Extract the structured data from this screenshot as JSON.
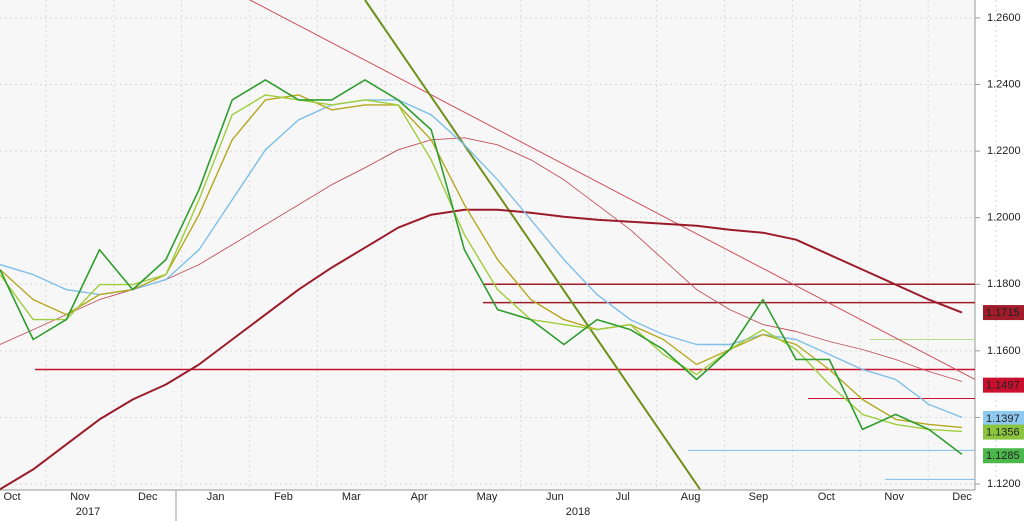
{
  "chart_data": {
    "type": "line",
    "x_axis": {
      "months": [
        "Oct",
        "Nov",
        "Dec",
        "Jan",
        "Feb",
        "Mar",
        "Apr",
        "May",
        "Jun",
        "Jul",
        "Aug",
        "Sep",
        "Oct",
        "Nov",
        "Dec"
      ],
      "years": [
        "2017",
        "2018"
      ]
    },
    "ylim": [
      1.1182,
      1.2654
    ],
    "yticks": [
      {
        "value": 1.12,
        "label": "1.1200"
      },
      {
        "value": 1.14,
        "label": "1.1400"
      },
      {
        "value": 1.16,
        "label": "1.1600"
      },
      {
        "value": 1.18,
        "label": "1.1800"
      },
      {
        "value": 1.2,
        "label": "1.2000"
      },
      {
        "value": 1.22,
        "label": "1.2200"
      },
      {
        "value": 1.24,
        "label": "1.2400"
      },
      {
        "value": 1.26,
        "label": "1.2600"
      }
    ],
    "grid": true,
    "series": [
      {
        "color": "#2f9e2f",
        "width": 1.6,
        "values": [
          1.1844,
          1.1634,
          1.1694,
          1.1904,
          1.1784,
          1.1874,
          1.2084,
          1.2354,
          1.2414,
          1.2354,
          1.2354,
          1.2414,
          1.2354,
          1.2264,
          1.1904,
          1.1724,
          1.1694,
          1.1619,
          1.1694,
          1.1664,
          1.1604,
          1.1514,
          1.1604,
          1.1754,
          1.1574,
          1.1574,
          1.1364,
          1.1409,
          1.1364,
          1.1289
        ]
      },
      {
        "color": "#9fce3b",
        "width": 1.4,
        "values": [
          1.1829,
          1.1694,
          1.1694,
          1.1799,
          1.1799,
          1.1829,
          1.2054,
          1.2309,
          1.2369,
          1.2354,
          1.2339,
          1.2354,
          1.2339,
          1.2174,
          1.1949,
          1.1784,
          1.1694,
          1.1679,
          1.1664,
          1.1679,
          1.1589,
          1.1529,
          1.1604,
          1.1664,
          1.1604,
          1.1499,
          1.1409,
          1.1379,
          1.1364,
          1.1358
        ]
      },
      {
        "color": "#b5a81e",
        "width": 1.4,
        "values": [
          1.1844,
          1.1754,
          1.1709,
          1.1769,
          1.1784,
          1.1829,
          1.2009,
          1.2234,
          1.2354,
          1.2369,
          1.2324,
          1.2339,
          1.2339,
          1.2234,
          1.2039,
          1.1874,
          1.1754,
          1.1694,
          1.1664,
          1.1679,
          1.1634,
          1.1559,
          1.1604,
          1.1649,
          1.1619,
          1.1544,
          1.1454,
          1.1394,
          1.1379,
          1.137
        ]
      },
      {
        "color": "#7fbfe8",
        "width": 1.4,
        "values": [
          1.1859,
          1.1829,
          1.1784,
          1.1769,
          1.1784,
          1.1814,
          1.1904,
          1.2054,
          1.2204,
          1.2294,
          1.2339,
          1.2354,
          1.2354,
          1.2309,
          1.2219,
          1.2114,
          1.1994,
          1.1874,
          1.1769,
          1.1694,
          1.1649,
          1.1619,
          1.1619,
          1.1649,
          1.1634,
          1.1589,
          1.1544,
          1.1514,
          1.1439,
          1.14
        ]
      },
      {
        "color": "#c0505a",
        "width": 0.9,
        "values": [
          1.1619,
          1.1664,
          1.1709,
          1.1754,
          1.1784,
          1.1814,
          1.1859,
          1.1919,
          1.1979,
          1.2039,
          1.2099,
          1.215,
          1.2204,
          1.2234,
          1.224,
          1.2219,
          1.2174,
          1.2114,
          1.2039,
          1.1964,
          1.1874,
          1.1784,
          1.1724,
          1.1679,
          1.1658,
          1.1628,
          1.1604,
          1.1574,
          1.1538,
          1.1508
        ]
      },
      {
        "color": "#9b1b2a",
        "width": 2,
        "values": [
          1.1184,
          1.1244,
          1.1319,
          1.1394,
          1.1454,
          1.1499,
          1.1559,
          1.1634,
          1.1709,
          1.1784,
          1.185,
          1.191,
          1.197,
          1.2009,
          1.2024,
          1.2024,
          1.2015,
          1.2003,
          1.1994,
          1.1988,
          1.1982,
          1.1976,
          1.1964,
          1.1955,
          1.1934,
          1.1889,
          1.1844,
          1.1799,
          1.1754,
          1.1715
        ]
      }
    ],
    "levels": [
      {
        "value": 1.18,
        "color": "#a01c2a"
      },
      {
        "value": 1.1745,
        "color": "#a01c2a"
      },
      {
        "value": 1.1544,
        "color": "#c8102e"
      },
      {
        "value": 1.1634,
        "color": "#b9d98a"
      },
      {
        "value": 1.1457,
        "color": "#c8102e"
      },
      {
        "value": 1.1301,
        "color": "#7fbfe8"
      },
      {
        "value": 1.1214,
        "color": "#7fbfe8"
      }
    ],
    "trendlines": [
      {
        "color": "#d0505a",
        "values": [
          1.2654,
          1.1514
        ]
      },
      {
        "color": "#6e8f1a",
        "values": [
          1.2654,
          1.1184
        ]
      }
    ],
    "price_labels": [
      {
        "label": "1.1715",
        "value": 1.1715,
        "color": "#a01c2a",
        "text_color": "#ffffff"
      },
      {
        "label": "1.1497",
        "value": 1.1497,
        "color": "#c8102e",
        "text_color": "#ffffff"
      },
      {
        "label": "1.1397",
        "value": 1.1397,
        "color": "#8ec9f0",
        "text_color": "#000000"
      },
      {
        "label": "1.1356",
        "value": 1.1356,
        "color": "#8bc43f",
        "text_color": "#000000"
      },
      {
        "label": "1.1285",
        "value": 1.1285,
        "color": "#4cb84c",
        "text_color": "#000000"
      }
    ]
  }
}
